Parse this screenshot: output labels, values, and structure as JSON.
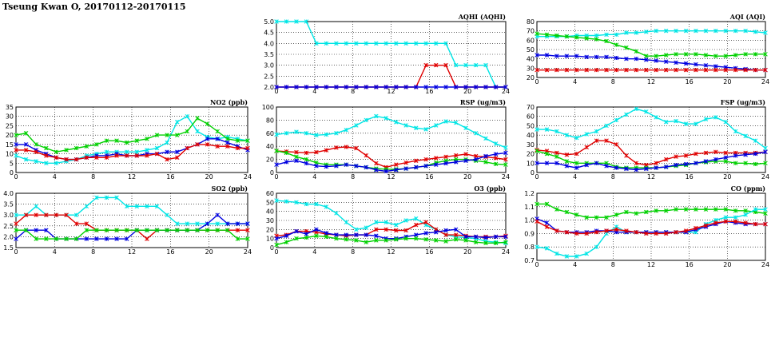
{
  "header": {
    "title": "Tseung Kwan O, 20170112-20170115"
  },
  "chart_data": [
    {
      "type": "line",
      "title": "AQHI (AQHI)",
      "xlim": [
        0,
        24
      ],
      "ylim": [
        2.0,
        5.0
      ],
      "xticks": [
        0,
        4,
        8,
        12,
        16,
        20,
        24
      ],
      "yticks": [
        2.0,
        2.5,
        3.0,
        3.5,
        4.0,
        4.5,
        5.0
      ],
      "yfmt": 1,
      "grid": true,
      "series": [
        {
          "color": "#00e5e5",
          "values": [
            5,
            5,
            5,
            5,
            4,
            4,
            4,
            4,
            4,
            4,
            4,
            4,
            4,
            4,
            4,
            4,
            4,
            4,
            3,
            3,
            3,
            3,
            2,
            2
          ]
        },
        {
          "color": "#e00000",
          "values": [
            2,
            2,
            2,
            2,
            2,
            2,
            2,
            2,
            2,
            2,
            2,
            2,
            2,
            2,
            2,
            3,
            3,
            3,
            2,
            2,
            2,
            2,
            2,
            2
          ]
        },
        {
          "color": "#0000e0",
          "values": [
            2,
            2,
            2,
            2,
            2,
            2,
            2,
            2,
            2,
            2,
            2,
            2,
            2,
            2,
            2,
            2,
            2,
            2,
            2,
            2,
            2,
            2,
            2,
            2
          ]
        }
      ]
    },
    {
      "type": "line",
      "title": "AQI (AQI)",
      "xlim": [
        0,
        24
      ],
      "ylim": [
        20,
        80
      ],
      "xticks": [
        0,
        4,
        8,
        12,
        16,
        20,
        24
      ],
      "yticks": [
        20,
        30,
        40,
        50,
        60,
        70,
        80
      ],
      "yfmt": 0,
      "grid": true,
      "series": [
        {
          "color": "#00e5e5",
          "values": [
            64,
            64,
            64,
            64,
            65,
            65,
            65,
            66,
            66,
            68,
            68,
            69,
            70,
            70,
            70,
            70,
            70,
            70,
            70,
            70,
            70,
            70,
            69,
            68
          ]
        },
        {
          "color": "#00d000",
          "values": [
            67,
            66,
            65,
            64,
            63,
            62,
            61,
            59,
            55,
            52,
            48,
            43,
            43,
            44,
            45,
            45,
            45,
            44,
            43,
            43,
            44,
            45,
            45,
            45
          ]
        },
        {
          "color": "#0000e0",
          "values": [
            44,
            44,
            43,
            43,
            43,
            42,
            42,
            42,
            41,
            40,
            40,
            39,
            38,
            37,
            36,
            35,
            34,
            33,
            32,
            31,
            30,
            29,
            28,
            28
          ]
        },
        {
          "color": "#e00000",
          "values": [
            28,
            28,
            28,
            28,
            28,
            28,
            28,
            28,
            28,
            28,
            28,
            28,
            28,
            28,
            28,
            28,
            28,
            28,
            28,
            28,
            28,
            28,
            28,
            28
          ]
        }
      ]
    },
    {
      "type": "line",
      "title": "NO2 (ppb)",
      "xlim": [
        0,
        24
      ],
      "ylim": [
        0,
        35
      ],
      "xticks": [
        0,
        4,
        8,
        12,
        16,
        20,
        24
      ],
      "yticks": [
        0,
        5,
        10,
        15,
        20,
        25,
        30,
        35
      ],
      "yfmt": 0,
      "grid": true,
      "series": [
        {
          "color": "#00e5e5",
          "values": [
            9,
            7,
            6,
            5,
            5,
            6,
            7,
            9,
            10,
            11,
            11,
            11,
            11,
            12,
            13,
            16,
            27,
            30,
            22,
            19,
            18,
            19,
            18,
            17
          ]
        },
        {
          "color": "#00d000",
          "values": [
            20,
            21,
            15,
            13,
            11,
            12,
            13,
            14,
            15,
            17,
            17,
            16,
            17,
            18,
            20,
            20,
            20,
            22,
            29,
            26,
            22,
            18,
            17,
            17
          ]
        },
        {
          "color": "#0000e0",
          "values": [
            15,
            15,
            12,
            10,
            8,
            7,
            7,
            8,
            9,
            9,
            10,
            9,
            9,
            10,
            10,
            11,
            11,
            13,
            15,
            18,
            18,
            16,
            14,
            12
          ]
        },
        {
          "color": "#e00000",
          "values": [
            12,
            12,
            11,
            9,
            8,
            7,
            7,
            8,
            8,
            8,
            9,
            9,
            9,
            9,
            10,
            7,
            8,
            13,
            15,
            15,
            14,
            14,
            13,
            13
          ]
        }
      ]
    },
    {
      "type": "line",
      "title": "RSP (ug/m3)",
      "xlim": [
        0,
        24
      ],
      "ylim": [
        0,
        100
      ],
      "xticks": [
        0,
        4,
        8,
        12,
        16,
        20,
        24
      ],
      "yticks": [
        0,
        20,
        40,
        60,
        80,
        100
      ],
      "yfmt": 0,
      "grid": true,
      "series": [
        {
          "color": "#00e5e5",
          "values": [
            58,
            60,
            62,
            60,
            57,
            58,
            60,
            65,
            72,
            80,
            86,
            83,
            77,
            72,
            68,
            66,
            72,
            78,
            76,
            68,
            60,
            52,
            44,
            38
          ]
        },
        {
          "color": "#e00000",
          "values": [
            33,
            32,
            31,
            30,
            31,
            34,
            38,
            39,
            37,
            26,
            14,
            8,
            12,
            15,
            18,
            20,
            22,
            24,
            26,
            28,
            25,
            24,
            22,
            20
          ]
        },
        {
          "color": "#00d000",
          "values": [
            33,
            30,
            24,
            20,
            15,
            12,
            12,
            12,
            10,
            8,
            6,
            5,
            5,
            6,
            8,
            10,
            15,
            18,
            20,
            20,
            18,
            16,
            13,
            12
          ]
        },
        {
          "color": "#0000e0",
          "values": [
            12,
            16,
            18,
            14,
            10,
            9,
            10,
            12,
            10,
            8,
            4,
            2,
            4,
            6,
            8,
            10,
            12,
            14,
            16,
            18,
            20,
            25,
            28,
            30
          ]
        }
      ]
    },
    {
      "type": "line",
      "title": "FSP (ug/m3)",
      "xlim": [
        0,
        24
      ],
      "ylim": [
        0,
        70
      ],
      "xticks": [
        0,
        4,
        8,
        12,
        16,
        20,
        24
      ],
      "yticks": [
        0,
        10,
        20,
        30,
        40,
        50,
        60,
        70
      ],
      "yfmt": 0,
      "grid": true,
      "series": [
        {
          "color": "#00e5e5",
          "values": [
            46,
            46,
            44,
            40,
            37,
            41,
            44,
            50,
            56,
            62,
            68,
            65,
            59,
            54,
            55,
            52,
            52,
            57,
            59,
            54,
            44,
            39,
            34,
            26
          ]
        },
        {
          "color": "#e00000",
          "values": [
            24,
            23,
            21,
            19,
            20,
            27,
            34,
            34,
            30,
            18,
            10,
            8,
            10,
            14,
            17,
            18,
            20,
            21,
            22,
            21,
            21,
            21,
            21,
            22
          ]
        },
        {
          "color": "#00d000",
          "values": [
            23,
            20,
            17,
            12,
            10,
            10,
            10,
            10,
            6,
            5,
            5,
            5,
            5,
            6,
            7,
            8,
            10,
            11,
            12,
            12,
            10,
            10,
            9,
            10
          ]
        },
        {
          "color": "#0000e0",
          "values": [
            10,
            10,
            10,
            7,
            5,
            8,
            10,
            7,
            5,
            4,
            3,
            4,
            5,
            6,
            8,
            9,
            10,
            12,
            14,
            16,
            18,
            19,
            20,
            22
          ]
        }
      ]
    },
    {
      "type": "line",
      "title": "SO2 (ppb)",
      "xlim": [
        0,
        24
      ],
      "ylim": [
        1.5,
        4.0
      ],
      "xticks": [
        0,
        4,
        8,
        12,
        16,
        20,
        24
      ],
      "yticks": [
        1.5,
        2.0,
        2.5,
        3.0,
        3.5,
        4.0
      ],
      "yfmt": 1,
      "grid": true,
      "series": [
        {
          "color": "#00e5e5",
          "values": [
            3,
            3,
            3.4,
            3,
            3,
            3,
            3,
            3.4,
            3.8,
            3.8,
            3.8,
            3.4,
            3.4,
            3.4,
            3.4,
            3,
            2.6,
            2.6,
            2.6,
            2.6,
            2.6,
            2.6,
            2.6,
            2.6
          ]
        },
        {
          "color": "#e00000",
          "values": [
            2.6,
            3,
            3,
            3,
            3,
            3,
            2.6,
            2.6,
            2.3,
            2.3,
            2.3,
            2.3,
            2.3,
            1.9,
            2.3,
            2.3,
            2.3,
            2.3,
            2.3,
            2.3,
            2.3,
            2.3,
            2.3,
            2.3
          ]
        },
        {
          "color": "#0000e0",
          "values": [
            1.9,
            2.3,
            2.3,
            2.3,
            1.9,
            1.9,
            1.9,
            1.9,
            1.9,
            1.9,
            1.9,
            1.9,
            2.3,
            2.3,
            2.3,
            2.3,
            2.3,
            2.3,
            2.3,
            2.6,
            3,
            2.6,
            2.6,
            2.6
          ]
        },
        {
          "color": "#00d000",
          "values": [
            2.3,
            2.3,
            1.9,
            1.9,
            1.9,
            1.9,
            1.9,
            2.3,
            2.3,
            2.3,
            2.3,
            2.3,
            2.3,
            2.3,
            2.3,
            2.3,
            2.3,
            2.3,
            2.3,
            2.3,
            2.3,
            2.3,
            1.9,
            1.9
          ]
        }
      ]
    },
    {
      "type": "line",
      "title": "O3 (ppb)",
      "xlim": [
        0,
        24
      ],
      "ylim": [
        0,
        60
      ],
      "xticks": [
        0,
        4,
        8,
        12,
        16,
        20,
        24
      ],
      "yticks": [
        0,
        10,
        20,
        30,
        40,
        50,
        60
      ],
      "yfmt": 0,
      "grid": true,
      "series": [
        {
          "color": "#00e5e5",
          "values": [
            52,
            51,
            50,
            48,
            48,
            45,
            38,
            28,
            20,
            22,
            28,
            28,
            25,
            30,
            32,
            25,
            20,
            14,
            12,
            11,
            10,
            7,
            6,
            5
          ]
        },
        {
          "color": "#e00000",
          "values": [
            13,
            14,
            18,
            18,
            17,
            15,
            14,
            13,
            14,
            14,
            20,
            20,
            19,
            19,
            25,
            28,
            20,
            14,
            14,
            13,
            12,
            12,
            12,
            13
          ]
        },
        {
          "color": "#0000e0",
          "values": [
            10,
            13,
            18,
            15,
            20,
            16,
            14,
            14,
            14,
            14,
            13,
            10,
            10,
            12,
            14,
            16,
            17,
            19,
            20,
            12,
            12,
            11,
            12,
            12
          ]
        },
        {
          "color": "#00d000",
          "values": [
            3,
            6,
            10,
            11,
            13,
            12,
            10,
            9,
            8,
            6,
            8,
            8,
            9,
            10,
            10,
            9,
            8,
            7,
            9,
            8,
            6,
            5,
            5,
            6
          ]
        }
      ]
    },
    {
      "type": "line",
      "title": "CO (ppm)",
      "xlim": [
        0,
        24
      ],
      "ylim": [
        0.7,
        1.2
      ],
      "xticks": [
        0,
        4,
        8,
        12,
        16,
        20,
        24
      ],
      "yticks": [
        0.7,
        0.8,
        0.9,
        1.0,
        1.1,
        1.2
      ],
      "yfmt": 1,
      "grid": true,
      "series": [
        {
          "color": "#00d000",
          "values": [
            1.12,
            1.12,
            1.08,
            1.06,
            1.04,
            1.02,
            1.02,
            1.02,
            1.04,
            1.06,
            1.05,
            1.06,
            1.07,
            1.07,
            1.08,
            1.08,
            1.08,
            1.08,
            1.08,
            1.08,
            1.07,
            1.07,
            1.06,
            1.05
          ]
        },
        {
          "color": "#00e5e5",
          "values": [
            0.8,
            0.79,
            0.75,
            0.73,
            0.73,
            0.75,
            0.8,
            0.9,
            0.95,
            0.91,
            0.91,
            0.91,
            0.91,
            0.91,
            0.91,
            0.91,
            0.91,
            0.97,
            1.0,
            1.02,
            1.02,
            1.04,
            1.08,
            1.08
          ]
        },
        {
          "color": "#0000e0",
          "values": [
            1.01,
            0.98,
            0.92,
            0.91,
            0.91,
            0.91,
            0.92,
            0.92,
            0.91,
            0.91,
            0.91,
            0.91,
            0.91,
            0.91,
            0.91,
            0.91,
            0.93,
            0.95,
            0.97,
            0.99,
            0.98,
            0.97,
            0.97,
            0.97
          ]
        },
        {
          "color": "#e00000",
          "values": [
            0.99,
            0.95,
            0.92,
            0.91,
            0.9,
            0.9,
            0.91,
            0.92,
            0.93,
            0.92,
            0.91,
            0.9,
            0.9,
            0.9,
            0.91,
            0.92,
            0.94,
            0.96,
            0.98,
            0.99,
            0.99,
            0.98,
            0.97,
            0.97
          ]
        }
      ]
    }
  ]
}
